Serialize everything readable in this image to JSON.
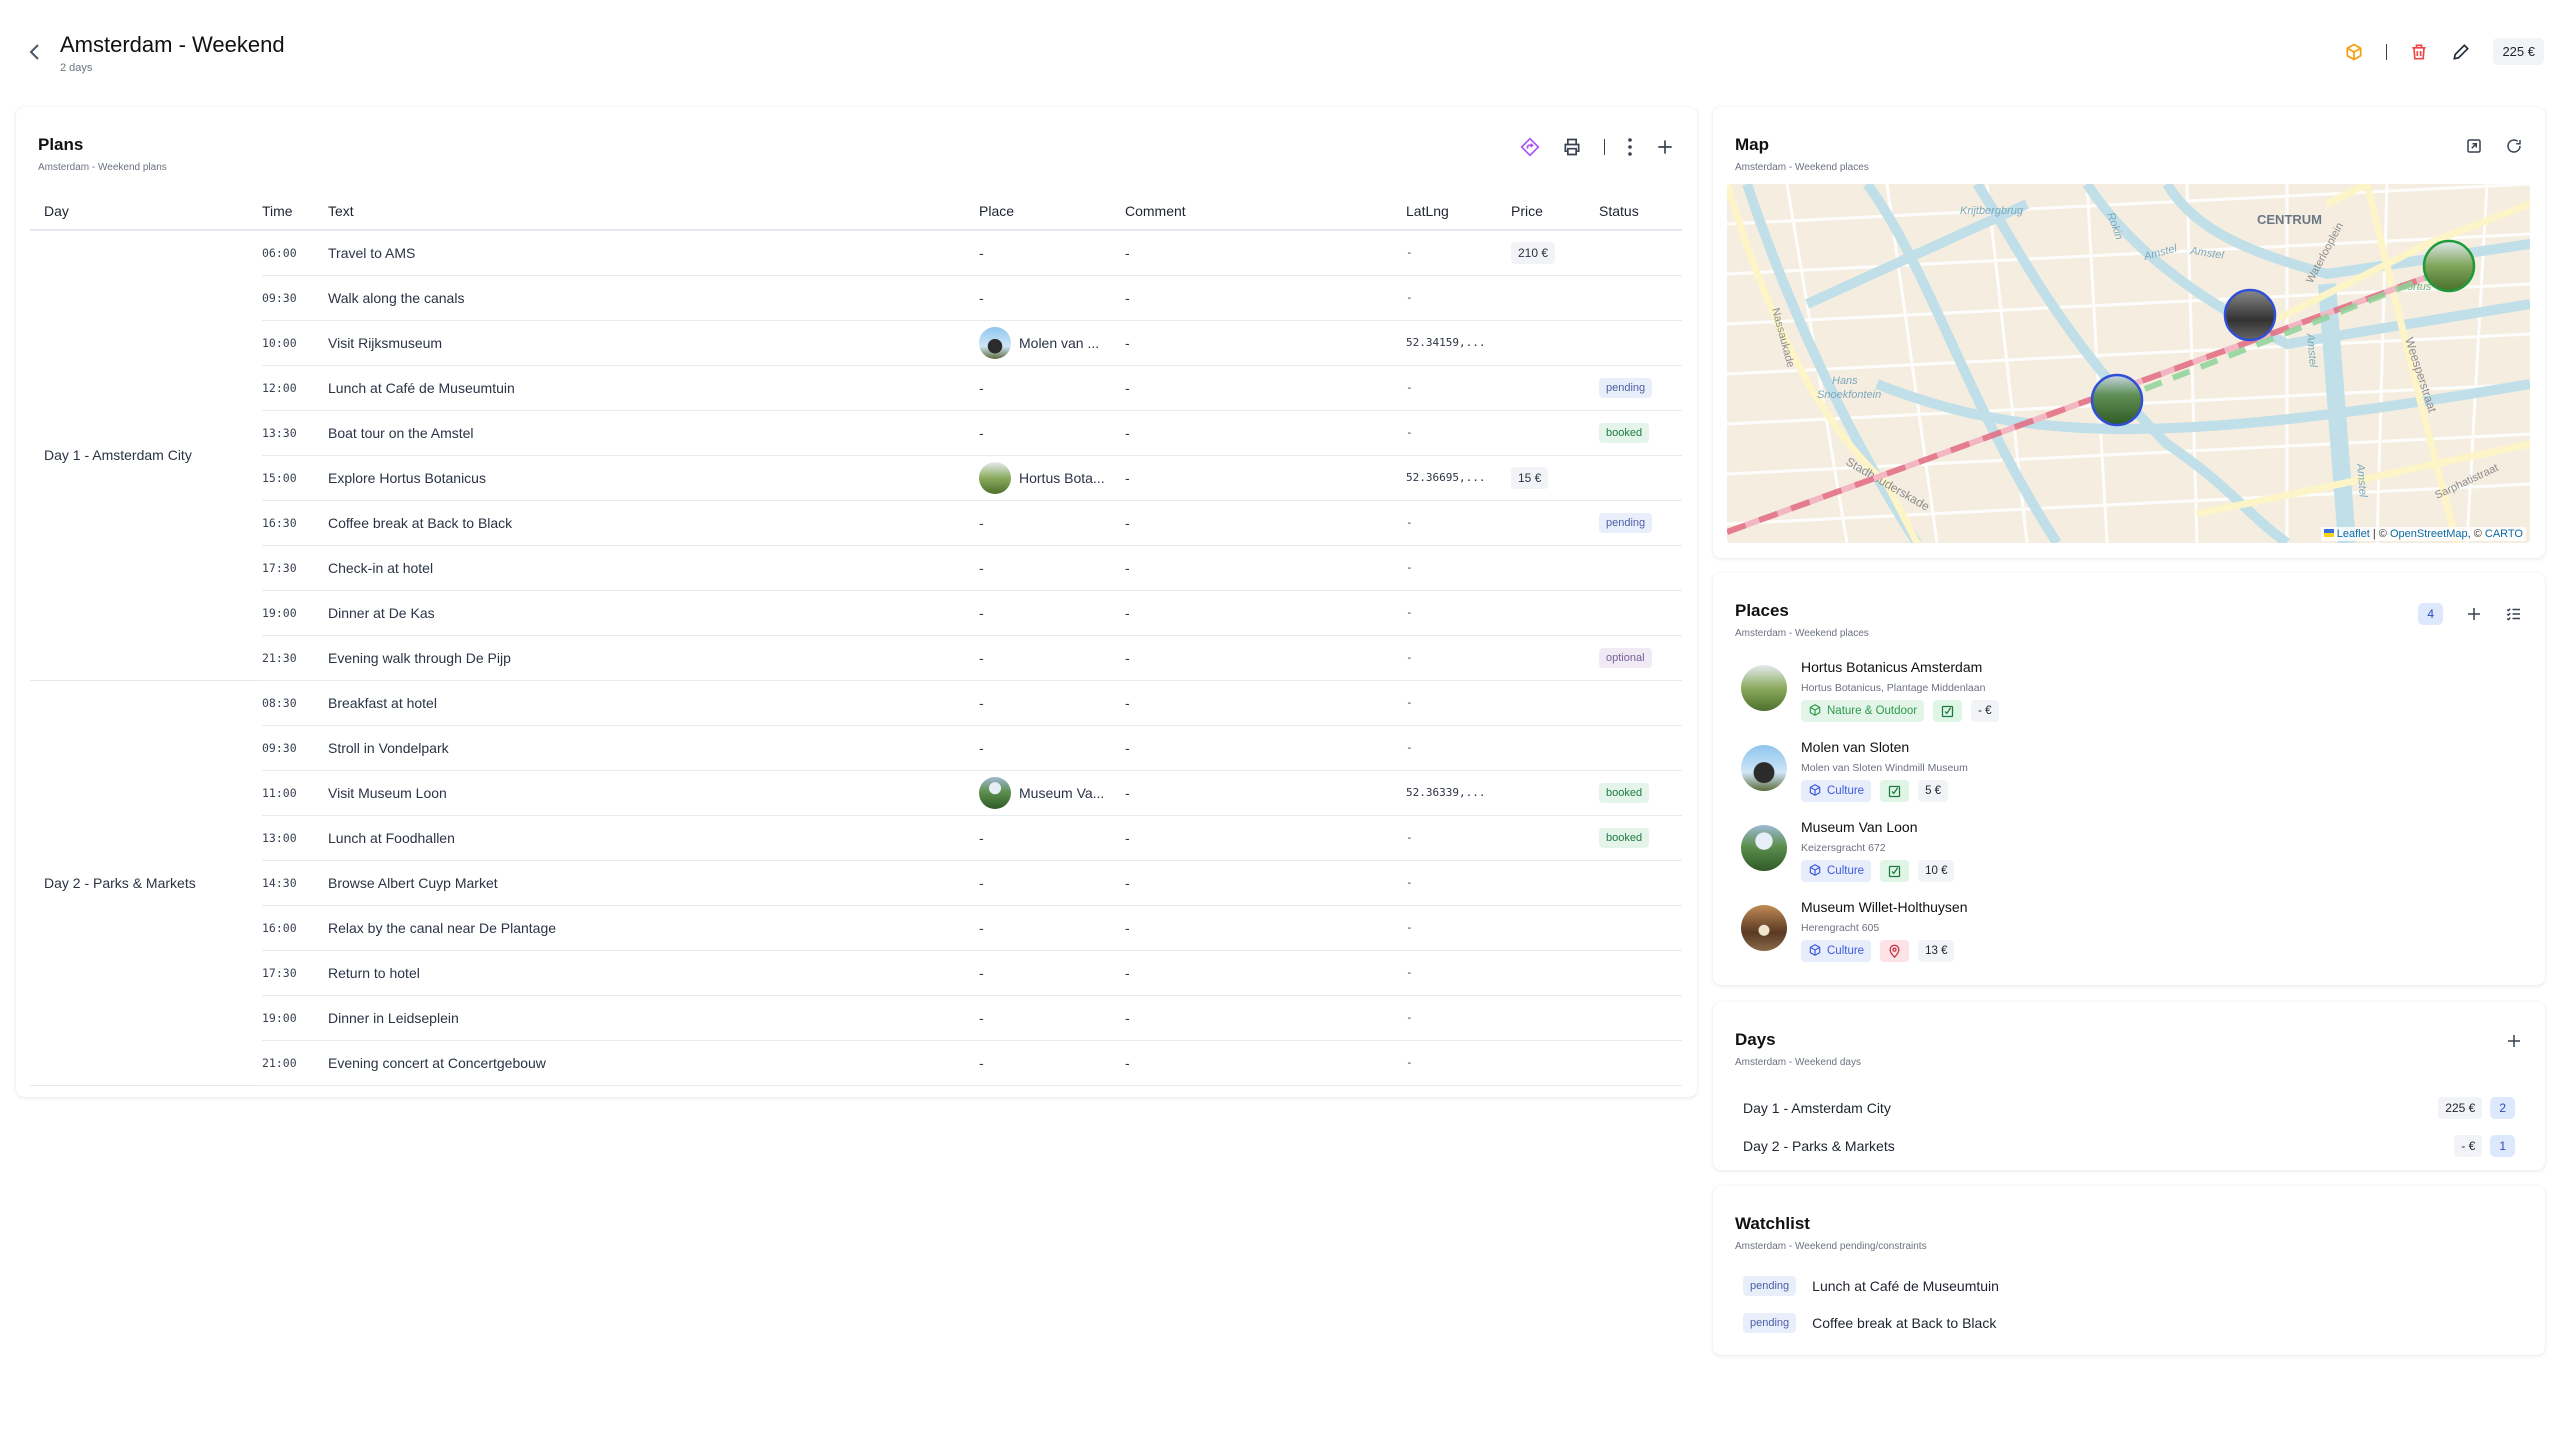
{
  "header": {
    "title": "Amsterdam - Weekend",
    "subtitle": "2 days",
    "total": "225 €"
  },
  "colors": {
    "accent": "#3b5bdb",
    "delete": "#ef4444",
    "box": "#f59e0b",
    "route": "#a855f7"
  },
  "plans": {
    "title": "Plans",
    "subtitle": "Amsterdam - Weekend plans",
    "columns": [
      "Day",
      "Time",
      "Text",
      "Place",
      "Comment",
      "LatLng",
      "Price",
      "Status"
    ],
    "days": [
      {
        "label": "Day 1 - Amsterdam City",
        "rows": [
          {
            "time": "06:00",
            "text": "Travel to AMS",
            "place": "-",
            "comment": "-",
            "latlng": "-",
            "price": "210 €",
            "status": ""
          },
          {
            "time": "09:30",
            "text": "Walk along the canals",
            "place": "-",
            "comment": "-",
            "latlng": "-",
            "price": "",
            "status": ""
          },
          {
            "time": "10:00",
            "text": "Visit Rijksmuseum",
            "place": "Molen van ...",
            "place_img": "windmill",
            "comment": "-",
            "latlng": "52.34159,...",
            "price": "",
            "status": ""
          },
          {
            "time": "12:00",
            "text": "Lunch at Café de Museumtuin",
            "place": "-",
            "comment": "-",
            "latlng": "-",
            "price": "",
            "status": "pending"
          },
          {
            "time": "13:30",
            "text": "Boat tour on the Amstel",
            "place": "-",
            "comment": "-",
            "latlng": "-",
            "price": "",
            "status": "booked"
          },
          {
            "time": "15:00",
            "text": "Explore Hortus Botanicus",
            "place": "Hortus Bota...",
            "place_img": "garden",
            "comment": "-",
            "latlng": "52.36695,...",
            "price": "15 €",
            "status": ""
          },
          {
            "time": "16:30",
            "text": "Coffee break at Back to Black",
            "place": "-",
            "comment": "-",
            "latlng": "-",
            "price": "",
            "status": "pending"
          },
          {
            "time": "17:30",
            "text": "Check-in at hotel",
            "place": "-",
            "comment": "-",
            "latlng": "-",
            "price": "",
            "status": ""
          },
          {
            "time": "19:00",
            "text": "Dinner at De Kas",
            "place": "-",
            "comment": "-",
            "latlng": "-",
            "price": "",
            "status": ""
          },
          {
            "time": "21:30",
            "text": "Evening walk through De Pijp",
            "place": "-",
            "comment": "-",
            "latlng": "-",
            "price": "",
            "status": "optional"
          }
        ]
      },
      {
        "label": "Day 2 - Parks & Markets",
        "rows": [
          {
            "time": "08:30",
            "text": "Breakfast at hotel",
            "place": "-",
            "comment": "-",
            "latlng": "-",
            "price": "",
            "status": ""
          },
          {
            "time": "09:30",
            "text": "Stroll in Vondelpark",
            "place": "-",
            "comment": "-",
            "latlng": "-",
            "price": "",
            "status": ""
          },
          {
            "time": "11:00",
            "text": "Visit Museum Loon",
            "place": "Museum Va...",
            "place_img": "museum",
            "comment": "-",
            "latlng": "52.36339,...",
            "price": "",
            "status": "booked"
          },
          {
            "time": "13:00",
            "text": "Lunch at Foodhallen",
            "place": "-",
            "comment": "-",
            "latlng": "-",
            "price": "",
            "status": "booked"
          },
          {
            "time": "14:30",
            "text": "Browse Albert Cuyp Market",
            "place": "-",
            "comment": "-",
            "latlng": "-",
            "price": "",
            "status": ""
          },
          {
            "time": "16:00",
            "text": "Relax by the canal near De Plantage",
            "place": "-",
            "comment": "-",
            "latlng": "-",
            "price": "",
            "status": ""
          },
          {
            "time": "17:30",
            "text": "Return to hotel",
            "place": "-",
            "comment": "-",
            "latlng": "-",
            "price": "",
            "status": ""
          },
          {
            "time": "19:00",
            "text": "Dinner in Leidseplein",
            "place": "-",
            "comment": "-",
            "latlng": "-",
            "price": "",
            "status": ""
          },
          {
            "time": "21:00",
            "text": "Evening concert at Concertgebouw",
            "place": "-",
            "comment": "-",
            "latlng": "-",
            "price": "",
            "status": ""
          }
        ]
      }
    ]
  },
  "map": {
    "title": "Map",
    "subtitle": "Amsterdam - Weekend places",
    "labels": [
      "CENTRUM",
      "Krijtbergbrug",
      "Rokin",
      "Amstel",
      "Amstel",
      "Waterlooplein",
      "Nassaukade",
      "Hans",
      "Snoekfontein",
      "Stadhouderskade",
      "Weesperstraat",
      "Sarphatistraat",
      "Amstel",
      "Amstel",
      "Hortus"
    ],
    "attribution": {
      "leaflet": "Leaflet",
      "sep": "| ©",
      "osm": "OpenStreetMap",
      "carto_sep": ", ©",
      "carto": "CARTO"
    }
  },
  "places": {
    "title": "Places",
    "subtitle": "Amsterdam - Weekend places",
    "count": "4",
    "items": [
      {
        "name": "Hortus Botanicus Amsterdam",
        "address": "Hortus Botanicus, Plantage Middenlaan",
        "category": "Nature & Outdoor",
        "category_type": "nature",
        "state": "check",
        "price": "- €",
        "img": "garden"
      },
      {
        "name": "Molen van Sloten",
        "address": "Molen van Sloten Windmill Museum",
        "category": "Culture",
        "category_type": "culture",
        "state": "check",
        "price": "5 €",
        "img": "windmill"
      },
      {
        "name": "Museum Van Loon",
        "address": "Keizersgracht 672",
        "category": "Culture",
        "category_type": "culture",
        "state": "check",
        "price": "10 €",
        "img": "museum"
      },
      {
        "name": "Museum Willet-Holthuysen",
        "address": "Herengracht 605",
        "category": "Culture",
        "category_type": "culture",
        "state": "pin",
        "price": "13 €",
        "img": "interior"
      }
    ]
  },
  "days": {
    "title": "Days",
    "subtitle": "Amsterdam - Weekend days",
    "items": [
      {
        "label": "Day 1 - Amsterdam City",
        "price": "225 €",
        "count": "2"
      },
      {
        "label": "Day 2 - Parks & Markets",
        "price": "- €",
        "count": "1"
      }
    ]
  },
  "watchlist": {
    "title": "Watchlist",
    "subtitle": "Amsterdam - Weekend pending/constraints",
    "items": [
      {
        "status": "pending",
        "text": "Lunch at Café de Museumtuin"
      },
      {
        "status": "pending",
        "text": "Coffee break at Back to Black"
      }
    ]
  }
}
